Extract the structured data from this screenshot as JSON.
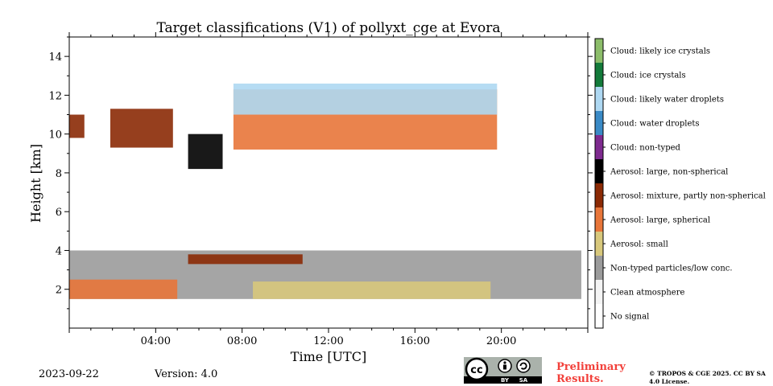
{
  "meta": {
    "date": "2023-09-22",
    "version": "Version: 4.0",
    "preliminary": "Preliminary Results.",
    "copyright": "© TROPOS & CGE 2025. CC BY SA 4.0 License.",
    "license_badge": {
      "cc": "cc",
      "by": "BY",
      "sa": "SA"
    }
  },
  "chart_data": {
    "type": "heatmap",
    "title": "Target classifications (V1) of pollyxt_cge at Evora",
    "xlabel": "Time [UTC]",
    "ylabel": "Height [km]",
    "xlim": [
      0,
      24
    ],
    "ylim": [
      0,
      15
    ],
    "x_ticks": [
      {
        "value": 4,
        "label": "04:00"
      },
      {
        "value": 8,
        "label": "08:00"
      },
      {
        "value": 12,
        "label": "12:00"
      },
      {
        "value": 16,
        "label": "16:00"
      },
      {
        "value": 20,
        "label": "20:00"
      }
    ],
    "y_ticks": [
      {
        "value": 2,
        "label": "2"
      },
      {
        "value": 4,
        "label": "4"
      },
      {
        "value": 6,
        "label": "6"
      },
      {
        "value": 8,
        "label": "8"
      },
      {
        "value": 10,
        "label": "10"
      },
      {
        "value": 12,
        "label": "12"
      },
      {
        "value": 14,
        "label": "14"
      }
    ],
    "classes": [
      {
        "label": "Cloud: likely ice crystals",
        "color": "#8cbd6a"
      },
      {
        "label": "Cloud: ice crystals",
        "color": "#137a3a"
      },
      {
        "label": "Cloud: likely water droplets",
        "color": "#aed8f2"
      },
      {
        "label": "Cloud: water droplets",
        "color": "#3a8ac6"
      },
      {
        "label": "Cloud: non-typed",
        "color": "#7e2a8f"
      },
      {
        "label": "Aerosol: large, non-spherical",
        "color": "#000000"
      },
      {
        "label": "Aerosol: mixture, partly non-spherical",
        "color": "#8b2a05"
      },
      {
        "label": "Aerosol: large, spherical",
        "color": "#e8763a"
      },
      {
        "label": "Aerosol: small",
        "color": "#d8c87c"
      },
      {
        "label": "Non-typed particles/low conc.",
        "color": "#9b9b9b"
      },
      {
        "label": "Clean atmosphere",
        "color": "#f4f4f4"
      },
      {
        "label": "No signal",
        "color": "#ffffff"
      }
    ],
    "regions": [
      {
        "class": "Non-typed particles/low conc.",
        "x": [
          0,
          23.7
        ],
        "y": [
          1.5,
          4.0
        ]
      },
      {
        "class": "Aerosol: small",
        "x": [
          8.5,
          19.5
        ],
        "y": [
          1.5,
          2.4
        ]
      },
      {
        "class": "Aerosol: large, spherical",
        "x": [
          0,
          5.0
        ],
        "y": [
          1.5,
          2.5
        ]
      },
      {
        "class": "Aerosol: mixture, partly non-spherical",
        "x": [
          5.5,
          10.8
        ],
        "y": [
          3.3,
          3.8
        ]
      },
      {
        "class": "Aerosol: mixture, partly non-spherical",
        "x": [
          0,
          0.7
        ],
        "y": [
          9.8,
          11.0
        ]
      },
      {
        "class": "Aerosol: mixture, partly non-spherical",
        "x": [
          1.9,
          4.8
        ],
        "y": [
          9.3,
          11.3
        ]
      },
      {
        "class": "Aerosol: large, non-spherical",
        "x": [
          5.5,
          7.1
        ],
        "y": [
          8.2,
          10.0
        ]
      },
      {
        "class": "Aerosol: large, spherical",
        "x": [
          7.6,
          19.8
        ],
        "y": [
          9.2,
          12.3
        ]
      },
      {
        "class": "Cloud: likely water droplets",
        "x": [
          7.6,
          19.8
        ],
        "y": [
          11.0,
          12.6
        ]
      }
    ]
  }
}
